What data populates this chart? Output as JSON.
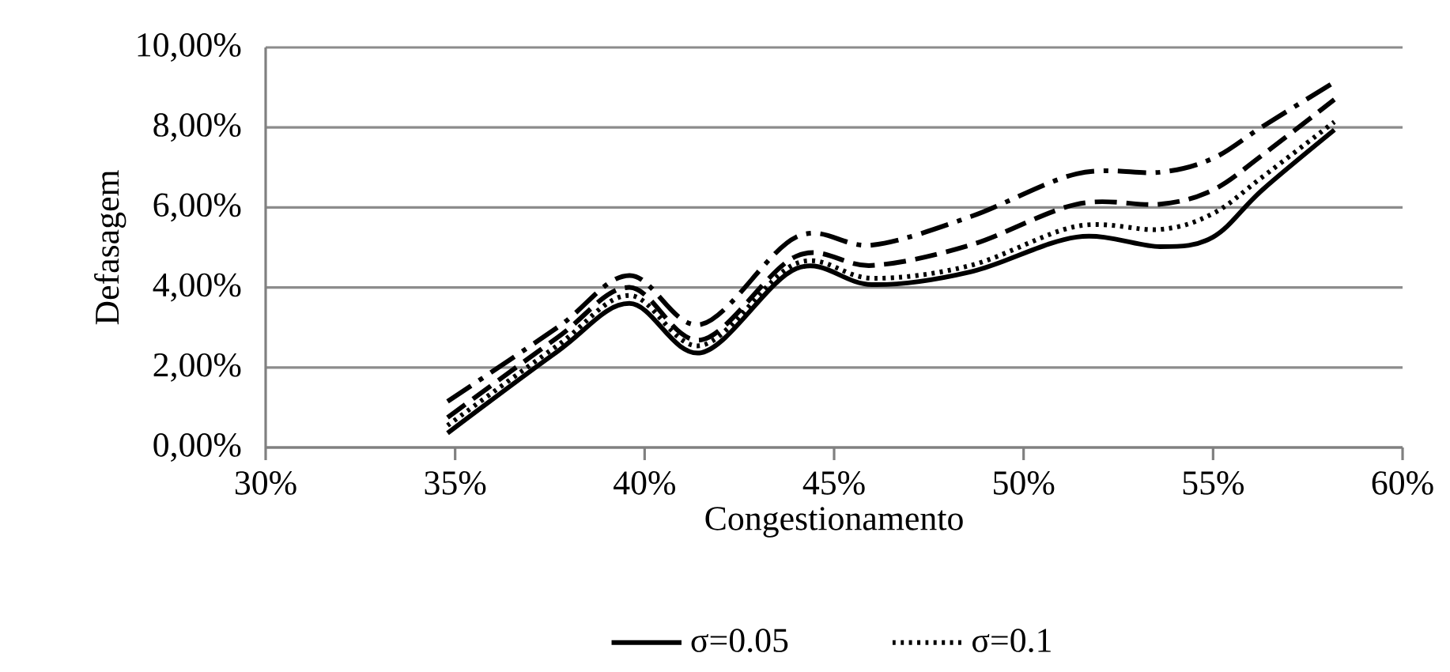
{
  "chart_data": {
    "type": "line",
    "xlabel": "Congestionamento",
    "ylabel": "Defasagem",
    "xlim": [
      30,
      60
    ],
    "ylim": [
      0,
      10
    ],
    "xticks": [
      {
        "value": 30,
        "label": "30%"
      },
      {
        "value": 35,
        "label": "35%"
      },
      {
        "value": 40,
        "label": "40%"
      },
      {
        "value": 45,
        "label": "45%"
      },
      {
        "value": 50,
        "label": "50%"
      },
      {
        "value": 55,
        "label": "55%"
      },
      {
        "value": 60,
        "label": "60%"
      }
    ],
    "yticks": [
      {
        "value": 0,
        "label": "0,00%"
      },
      {
        "value": 2,
        "label": "2,00%"
      },
      {
        "value": 4,
        "label": "4,00%"
      },
      {
        "value": 6,
        "label": "6,00%"
      },
      {
        "value": 8,
        "label": "8,00%"
      },
      {
        "value": 10,
        "label": "10,00%"
      }
    ],
    "grid": "y",
    "legend": "bottom",
    "marker": "none",
    "x": [
      34.8,
      37.7,
      39.6,
      41.5,
      44.0,
      46.0,
      48.6,
      51.4,
      53.6,
      55.0,
      56.3,
      58.2
    ],
    "series": [
      {
        "name": "σ=0.05",
        "color": "#000000",
        "line_style": "solid",
        "values": [
          0.36,
          2.4,
          3.6,
          2.37,
          4.47,
          4.07,
          4.39,
          5.26,
          5.02,
          5.26,
          6.44,
          7.94
        ]
      },
      {
        "name": "σ=0.1",
        "color": "#000000",
        "line_style": "dotted",
        "values": [
          0.55,
          2.55,
          3.8,
          2.55,
          4.6,
          4.23,
          4.55,
          5.53,
          5.45,
          5.85,
          6.76,
          8.14
        ]
      },
      {
        "color": "#000000",
        "line_style": "dashed",
        "values": [
          0.75,
          2.75,
          4.0,
          2.69,
          4.78,
          4.55,
          5.06,
          6.08,
          6.08,
          6.44,
          7.31,
          8.7
        ]
      },
      {
        "color": "#000000",
        "line_style": "dashdot",
        "values": [
          1.15,
          3.0,
          4.3,
          3.08,
          5.26,
          5.06,
          5.77,
          6.84,
          6.88,
          7.23,
          8.02,
          9.13
        ]
      }
    ]
  }
}
